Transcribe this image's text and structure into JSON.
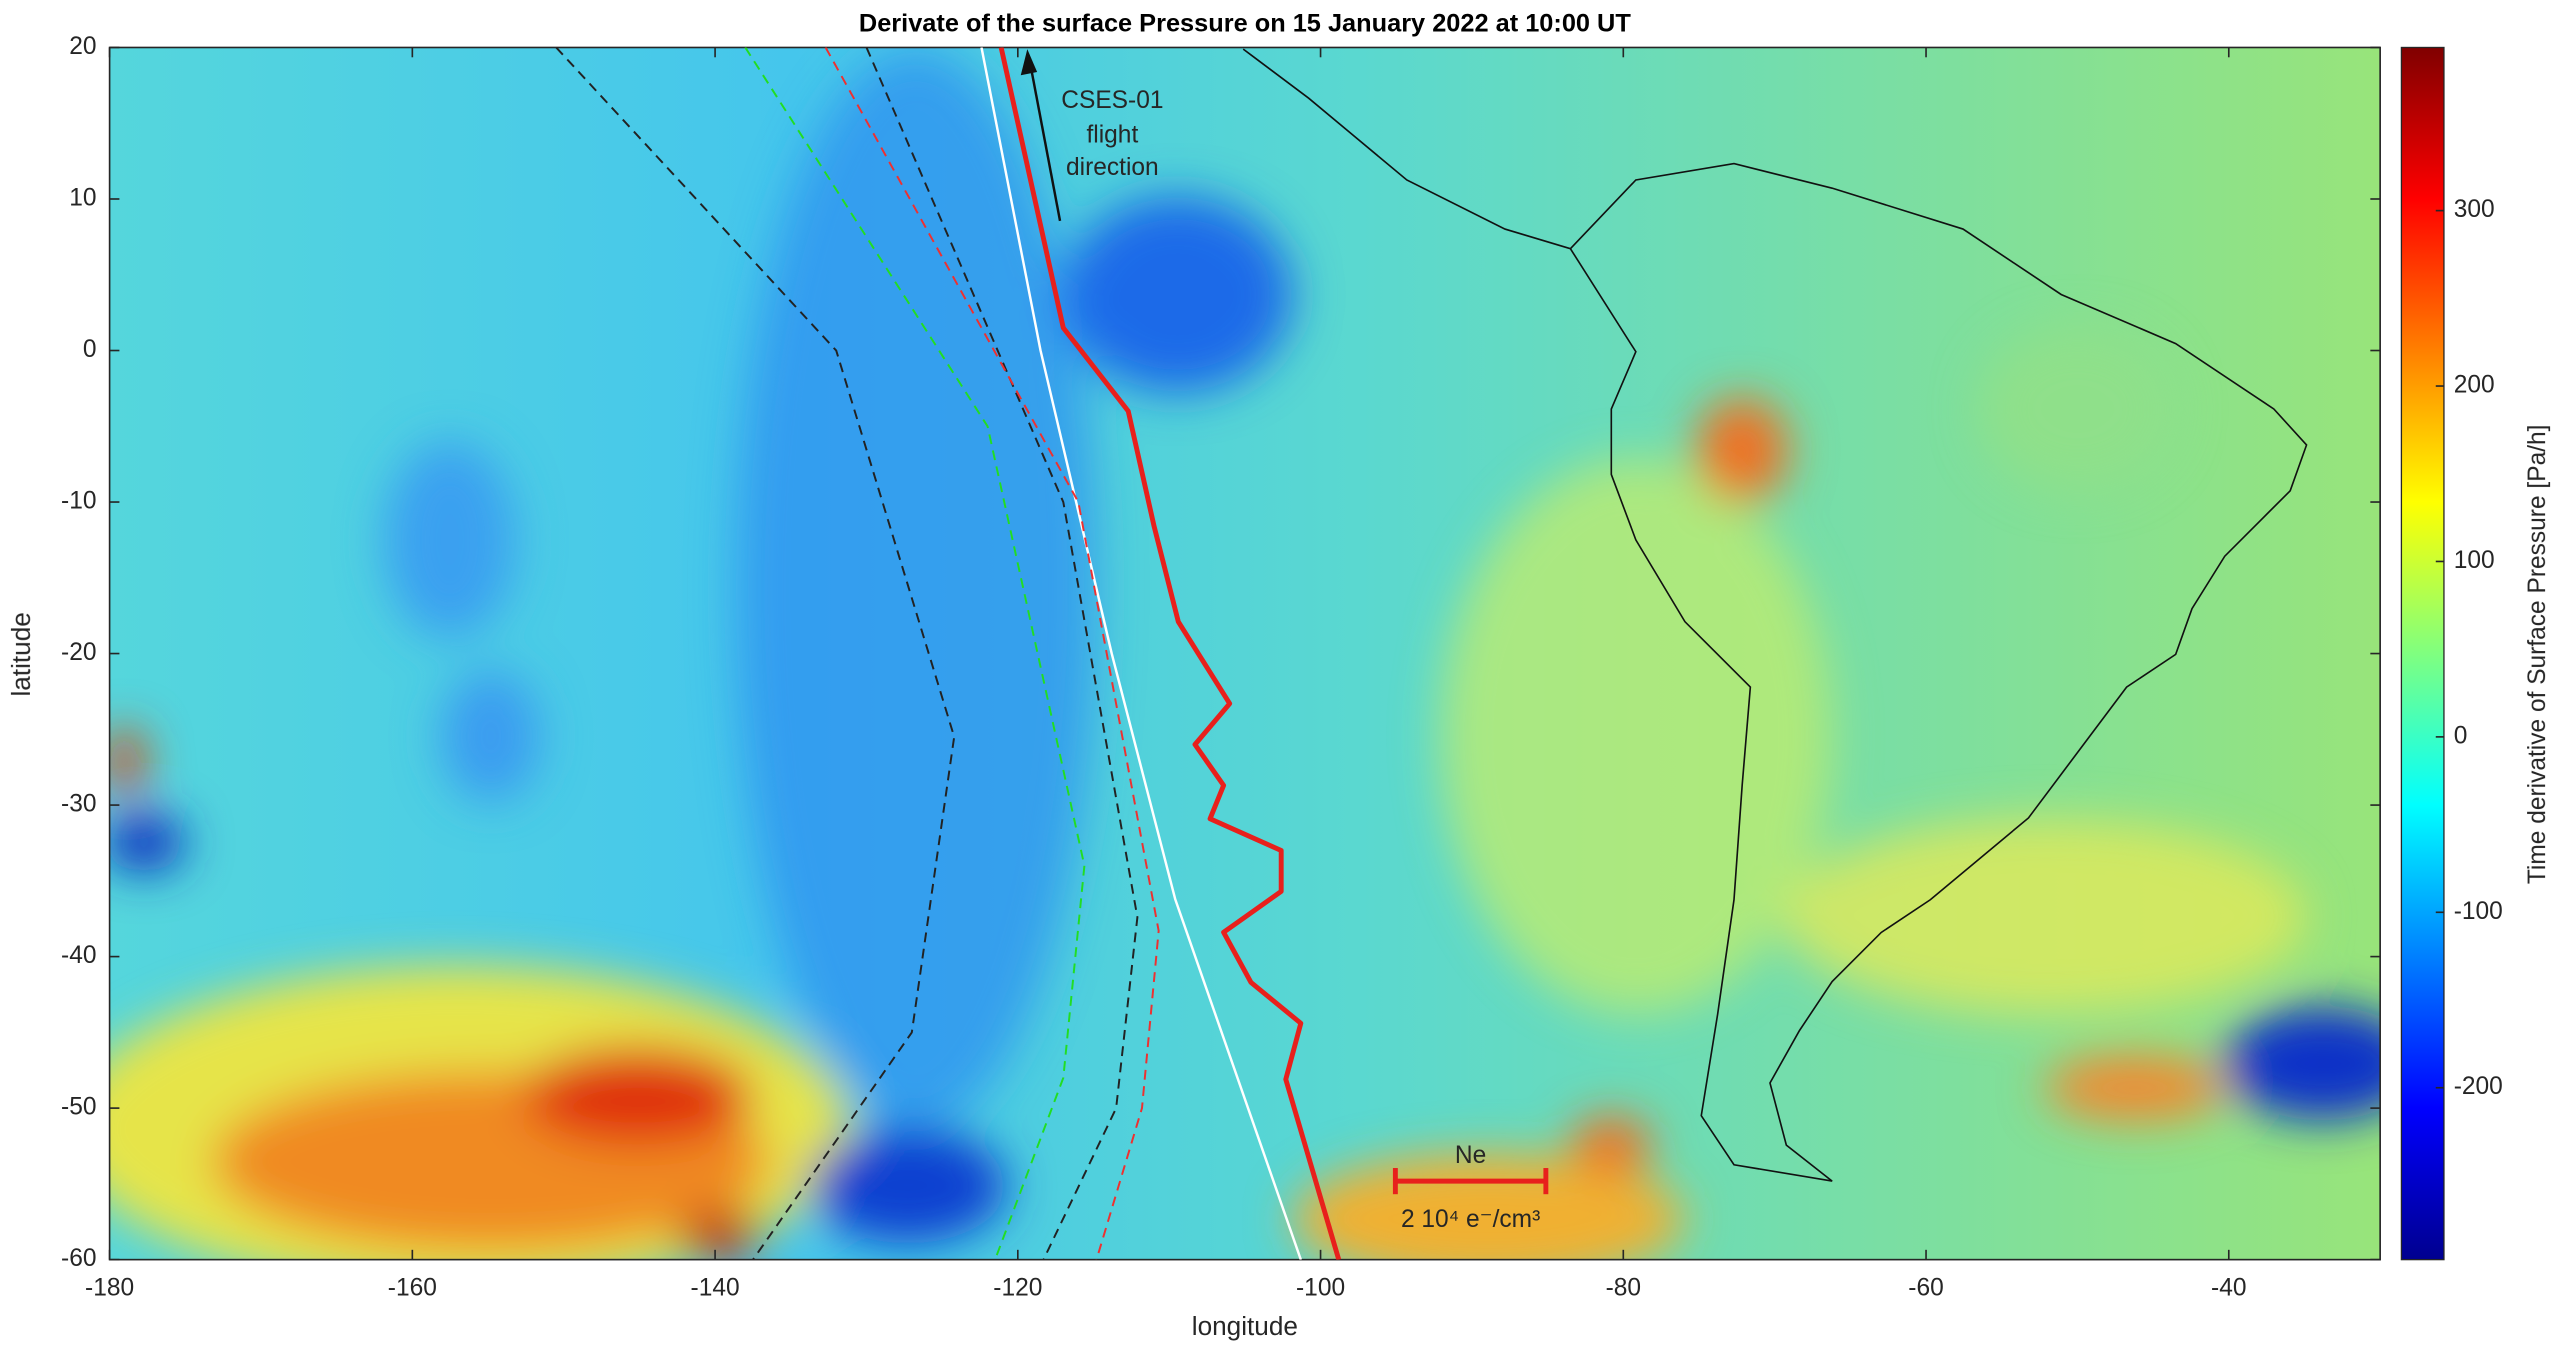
{
  "chart_data": {
    "type": "map",
    "title": "Derivate of the surface Pressure on 15 January 2022 at 10:00 UT",
    "xlabel": "longitude",
    "ylabel": "latitude",
    "xlim": [
      -180,
      -30
    ],
    "ylim": [
      -60,
      20
    ],
    "xticks": [
      -180,
      -160,
      -140,
      -120,
      -100,
      -80,
      -60,
      -40
    ],
    "yticks": [
      -60,
      -50,
      -40,
      -30,
      -20,
      -10,
      0,
      10,
      20
    ],
    "colorbar": {
      "label": "Time derivative of Surface Pressure [Pa/h]",
      "lim": [
        -298,
        393
      ],
      "ticks": [
        -200,
        -100,
        0,
        100,
        200,
        300
      ],
      "colormap": "jet"
    },
    "annotations": {
      "flight": [
        "CSES-01",
        "flight",
        "direction"
      ],
      "scale_title": "Ne",
      "scale_label": "2 10⁴ e⁻/cm³"
    },
    "series": [
      {
        "color": "#e8201c",
        "width": 3,
        "dash": false,
        "x": [
          -121.1,
          -117,
          -112.7,
          -111,
          -109.4,
          -106,
          -108.3,
          -106.4,
          -107.3,
          -102.6,
          -102.6,
          -106.4,
          -104.6,
          -101.3,
          -102.3,
          -98.8
        ],
        "values": [
          20,
          1.5,
          -4,
          -11.6,
          -17.9,
          -23.3,
          -26,
          -28.7,
          -30.9,
          -33,
          -35.7,
          -38.4,
          -41.7,
          -44.4,
          -48.1,
          -60
        ]
      },
      {
        "color": "#ffffff",
        "width": 1.5,
        "dash": false,
        "x": [
          -122.4,
          -118.5,
          -113.8,
          -109.6,
          -101.3
        ],
        "values": [
          20,
          0,
          -20,
          -36.2,
          -60
        ]
      },
      {
        "color": "#222222",
        "width": 1.2,
        "dash": true,
        "x": [
          -150.5,
          -132,
          -124.2,
          -127,
          -137.5
        ],
        "values": [
          20,
          0,
          -25.5,
          -45,
          -60
        ]
      },
      {
        "color": "#222222",
        "width": 1.2,
        "dash": true,
        "x": [
          -130,
          -117,
          -112.1,
          -113.5,
          -118.3
        ],
        "values": [
          20,
          -10,
          -37.4,
          -50,
          -60
        ]
      },
      {
        "color": "#22dd22",
        "width": 1.2,
        "dash": true,
        "x": [
          -138,
          -122,
          -115.6,
          -117,
          -121.5
        ],
        "values": [
          20,
          -5,
          -34,
          -48,
          -60
        ]
      },
      {
        "color": "#ee3030",
        "width": 1.2,
        "dash": true,
        "x": [
          -132.7,
          -116,
          -110.7,
          -111.8,
          -114.8
        ],
        "values": [
          20,
          -10,
          -38.3,
          -50,
          -60
        ]
      }
    ]
  }
}
